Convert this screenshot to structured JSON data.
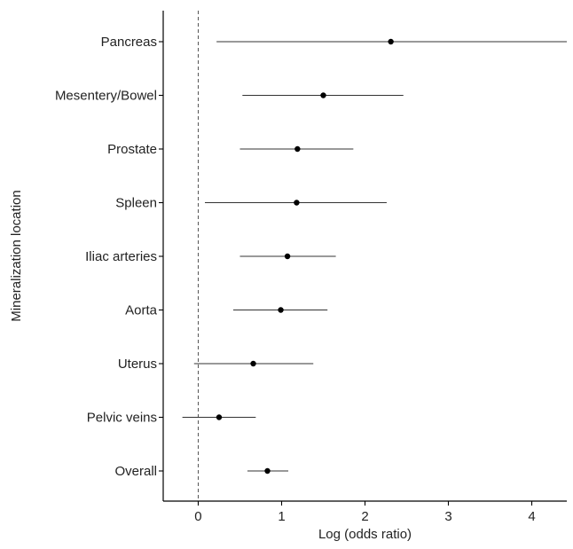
{
  "chart_data": {
    "type": "scatter",
    "subtype": "forest-plot",
    "title": "",
    "xlabel": "Log (odds ratio)",
    "ylabel": "Mineralization location",
    "xlim": [
      -0.42,
      4.42
    ],
    "xticks": [
      0,
      1,
      2,
      3,
      4
    ],
    "reference_line": {
      "x": 0,
      "style": "dashed"
    },
    "grid": false,
    "legend": "none",
    "colors": {
      "point": "#000000",
      "interval": "#333333",
      "axis": "#000000",
      "reference": "#555555"
    },
    "categories": [
      "Pancreas",
      "Mesentery/Bowel",
      "Prostate",
      "Spleen",
      "Iliac arteries",
      "Aorta",
      "Uterus",
      "Pelvic veins",
      "Overall"
    ],
    "estimates": [
      2.31,
      1.5,
      1.19,
      1.18,
      1.07,
      0.99,
      0.66,
      0.25,
      0.83
    ],
    "lower": [
      0.22,
      0.53,
      0.5,
      0.08,
      0.5,
      0.42,
      -0.05,
      -0.19,
      0.59
    ],
    "upper": [
      4.42,
      2.46,
      1.86,
      2.26,
      1.65,
      1.55,
      1.38,
      0.69,
      1.08
    ]
  }
}
